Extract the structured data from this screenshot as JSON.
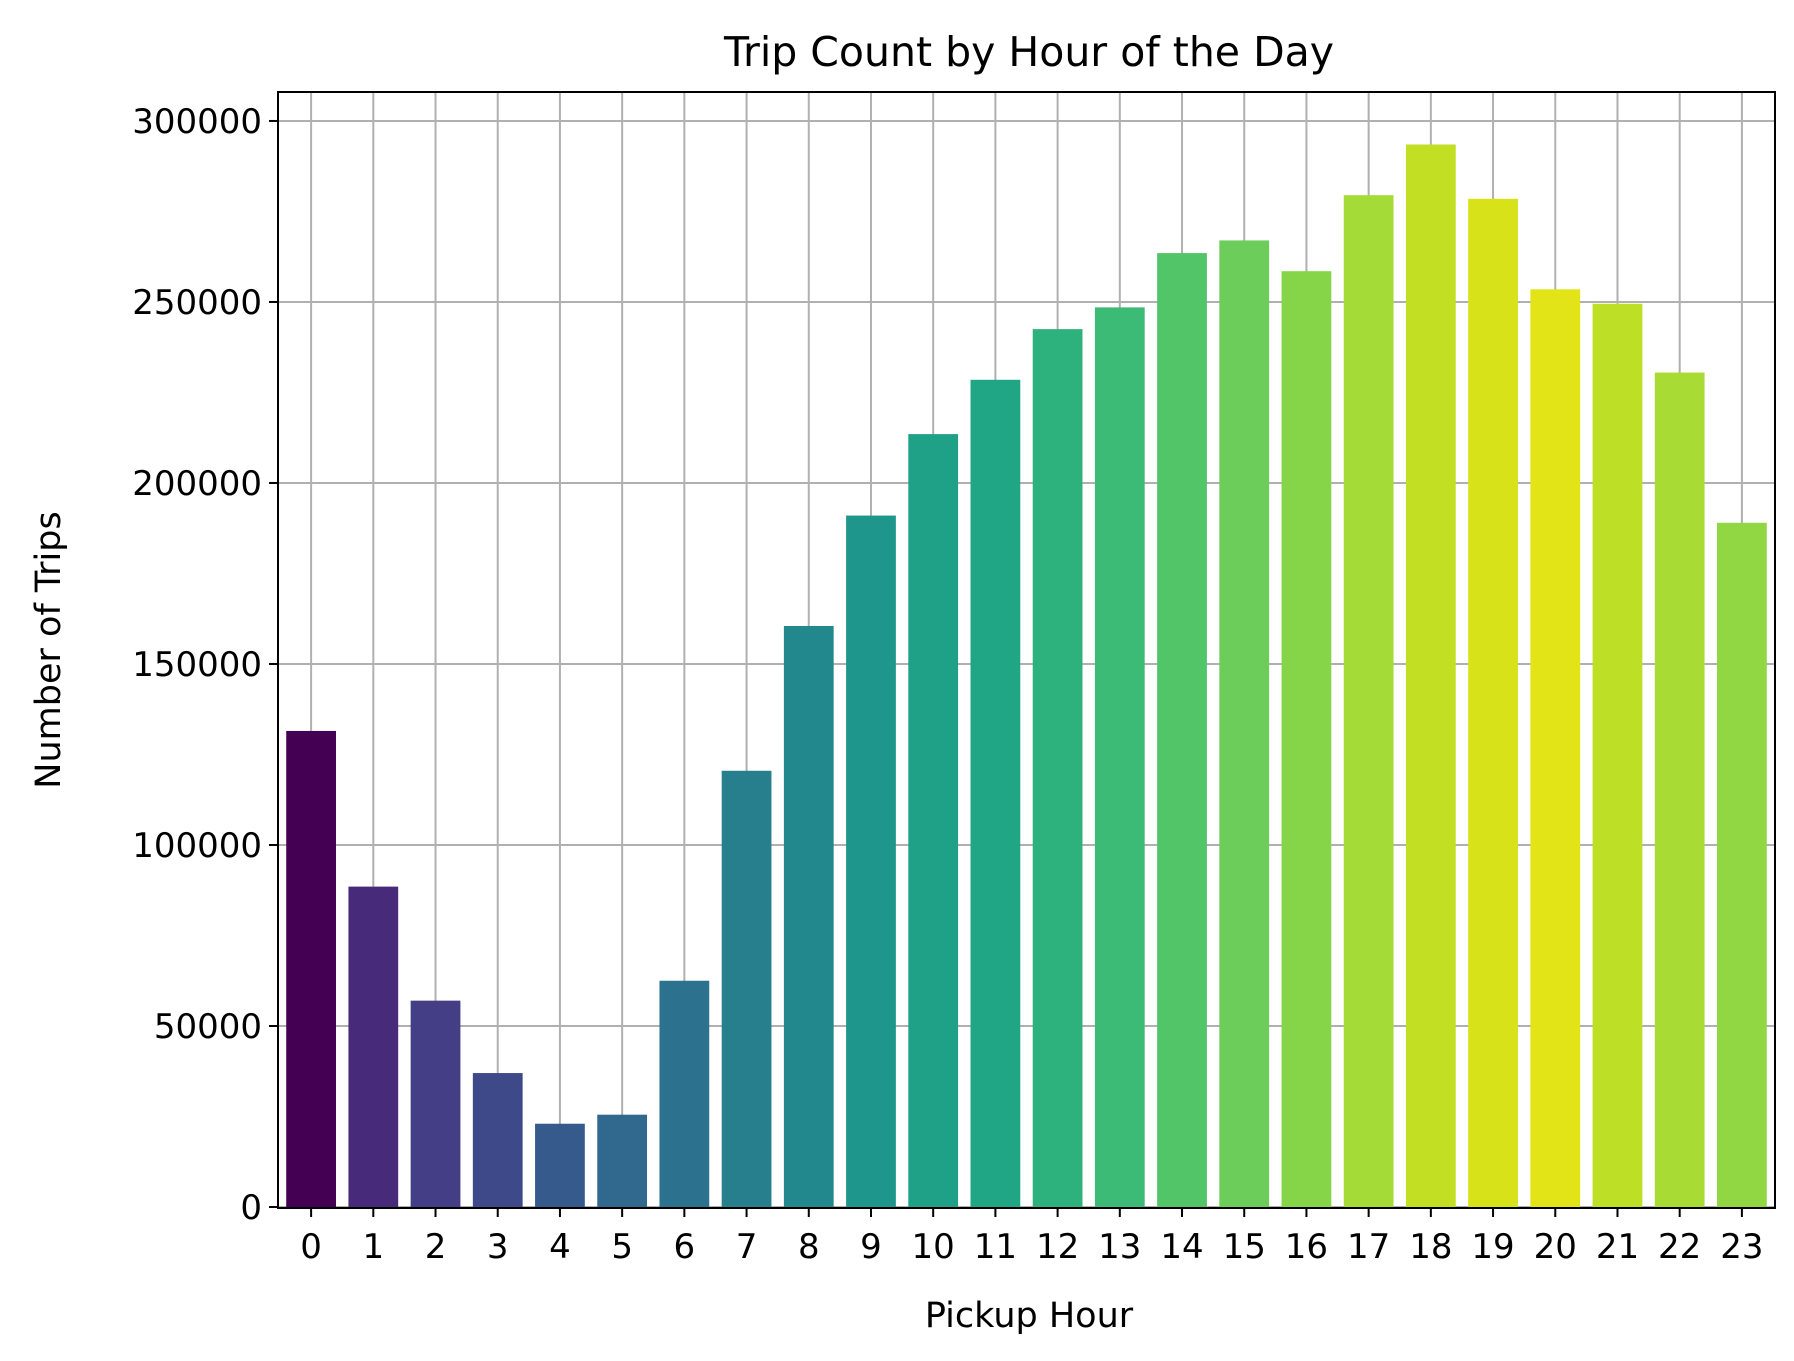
{
  "chart_data": {
    "type": "bar",
    "title": "Trip Count by Hour of the Day",
    "xlabel": "Pickup Hour",
    "ylabel": "Number of Trips",
    "categories": [
      "0",
      "1",
      "2",
      "3",
      "4",
      "5",
      "6",
      "7",
      "8",
      "9",
      "10",
      "11",
      "12",
      "13",
      "14",
      "15",
      "16",
      "17",
      "18",
      "19",
      "20",
      "21",
      "22",
      "23"
    ],
    "values": [
      131500,
      88500,
      57000,
      37000,
      23000,
      25500,
      62500,
      120500,
      160500,
      191000,
      213500,
      228500,
      242500,
      248500,
      263500,
      267000,
      258500,
      279500,
      293500,
      278500,
      253500,
      249500,
      230500,
      189000
    ],
    "yticks": [
      0,
      50000,
      100000,
      150000,
      200000,
      250000,
      300000
    ],
    "ylim": [
      0,
      308000
    ],
    "grid": true,
    "palette": "viridis",
    "colors": [
      "#440154",
      "#472a7a",
      "#433e85",
      "#3e4989",
      "#375a8c",
      "#31688e",
      "#2c728e",
      "#277f8e",
      "#23888e",
      "#1f968b",
      "#1fa187",
      "#21a685",
      "#2db27d",
      "#3bbb75",
      "#52c569",
      "#6ccd5a",
      "#86d549",
      "#a5db36",
      "#c2df23",
      "#d8e219",
      "#e2e418",
      "#bddf26",
      "#a8db34",
      "#90d743"
    ]
  }
}
